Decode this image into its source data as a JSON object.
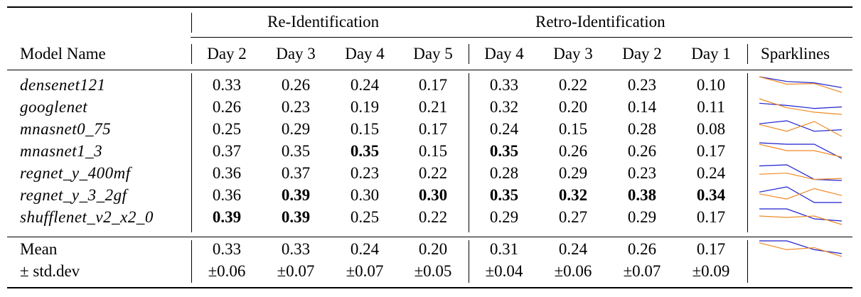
{
  "groups": {
    "reid": "Re-Identification",
    "retro": "Retro-Identification"
  },
  "columns": {
    "model": "Model Name",
    "days": [
      "Day 2",
      "Day 3",
      "Day 4",
      "Day 5",
      "Day 4",
      "Day 3",
      "Day 2",
      "Day 1"
    ],
    "sparklines": "Sparklines"
  },
  "rows": [
    {
      "name": "densenet121",
      "values": [
        "0.33",
        "0.26",
        "0.24",
        "0.17",
        "0.33",
        "0.22",
        "0.23",
        "0.10"
      ],
      "bold": [
        false,
        false,
        false,
        false,
        false,
        false,
        false,
        false
      ],
      "reid": [
        0.33,
        0.26,
        0.24,
        0.17
      ],
      "retro": [
        0.33,
        0.22,
        0.23,
        0.1
      ]
    },
    {
      "name": "googlenet",
      "values": [
        "0.26",
        "0.23",
        "0.19",
        "0.21",
        "0.32",
        "0.20",
        "0.14",
        "0.11"
      ],
      "bold": [
        false,
        false,
        false,
        false,
        false,
        false,
        false,
        false
      ],
      "reid": [
        0.26,
        0.23,
        0.19,
        0.21
      ],
      "retro": [
        0.32,
        0.2,
        0.14,
        0.11
      ]
    },
    {
      "name": "mnasnet0_75",
      "values": [
        "0.25",
        "0.29",
        "0.15",
        "0.17",
        "0.24",
        "0.15",
        "0.28",
        "0.08"
      ],
      "bold": [
        false,
        false,
        false,
        false,
        false,
        false,
        false,
        false
      ],
      "reid": [
        0.25,
        0.29,
        0.15,
        0.17
      ],
      "retro": [
        0.24,
        0.15,
        0.28,
        0.08
      ]
    },
    {
      "name": "mnasnet1_3",
      "values": [
        "0.37",
        "0.35",
        "0.35",
        "0.15",
        "0.35",
        "0.26",
        "0.26",
        "0.17"
      ],
      "bold": [
        false,
        false,
        true,
        false,
        true,
        false,
        false,
        false
      ],
      "reid": [
        0.37,
        0.35,
        0.35,
        0.15
      ],
      "retro": [
        0.35,
        0.26,
        0.26,
        0.17
      ]
    },
    {
      "name": "regnet_y_400mf",
      "values": [
        "0.36",
        "0.37",
        "0.23",
        "0.22",
        "0.28",
        "0.29",
        "0.23",
        "0.24"
      ],
      "bold": [
        false,
        false,
        false,
        false,
        false,
        false,
        false,
        false
      ],
      "reid": [
        0.36,
        0.37,
        0.23,
        0.22
      ],
      "retro": [
        0.28,
        0.29,
        0.23,
        0.24
      ]
    },
    {
      "name": "regnet_y_3_2gf",
      "values": [
        "0.36",
        "0.39",
        "0.30",
        "0.30",
        "0.35",
        "0.32",
        "0.38",
        "0.34"
      ],
      "bold": [
        false,
        true,
        false,
        true,
        true,
        true,
        true,
        true
      ],
      "reid": [
        0.36,
        0.39,
        0.3,
        0.3
      ],
      "retro": [
        0.35,
        0.32,
        0.38,
        0.34
      ]
    },
    {
      "name": "shufflenet_v2_x2_0",
      "values": [
        "0.39",
        "0.39",
        "0.25",
        "0.22",
        "0.29",
        "0.27",
        "0.29",
        "0.17"
      ],
      "bold": [
        true,
        true,
        false,
        false,
        false,
        false,
        false,
        false
      ],
      "reid": [
        0.39,
        0.39,
        0.25,
        0.22
      ],
      "retro": [
        0.29,
        0.27,
        0.29,
        0.17
      ]
    }
  ],
  "mean": {
    "label": "Mean",
    "values": [
      "0.33",
      "0.33",
      "0.24",
      "0.20",
      "0.31",
      "0.24",
      "0.26",
      "0.17"
    ],
    "reid": [
      0.33,
      0.33,
      0.24,
      0.2
    ],
    "retro": [
      0.31,
      0.24,
      0.26,
      0.17
    ]
  },
  "std": {
    "label": "± std.dev",
    "values": [
      "±0.06",
      "±0.07",
      "±0.07",
      "±0.05",
      "±0.04",
      "±0.06",
      "±0.07",
      "±0.09"
    ]
  },
  "colors": {
    "reid": "#1f1fcf",
    "retro": "#f08a24"
  }
}
